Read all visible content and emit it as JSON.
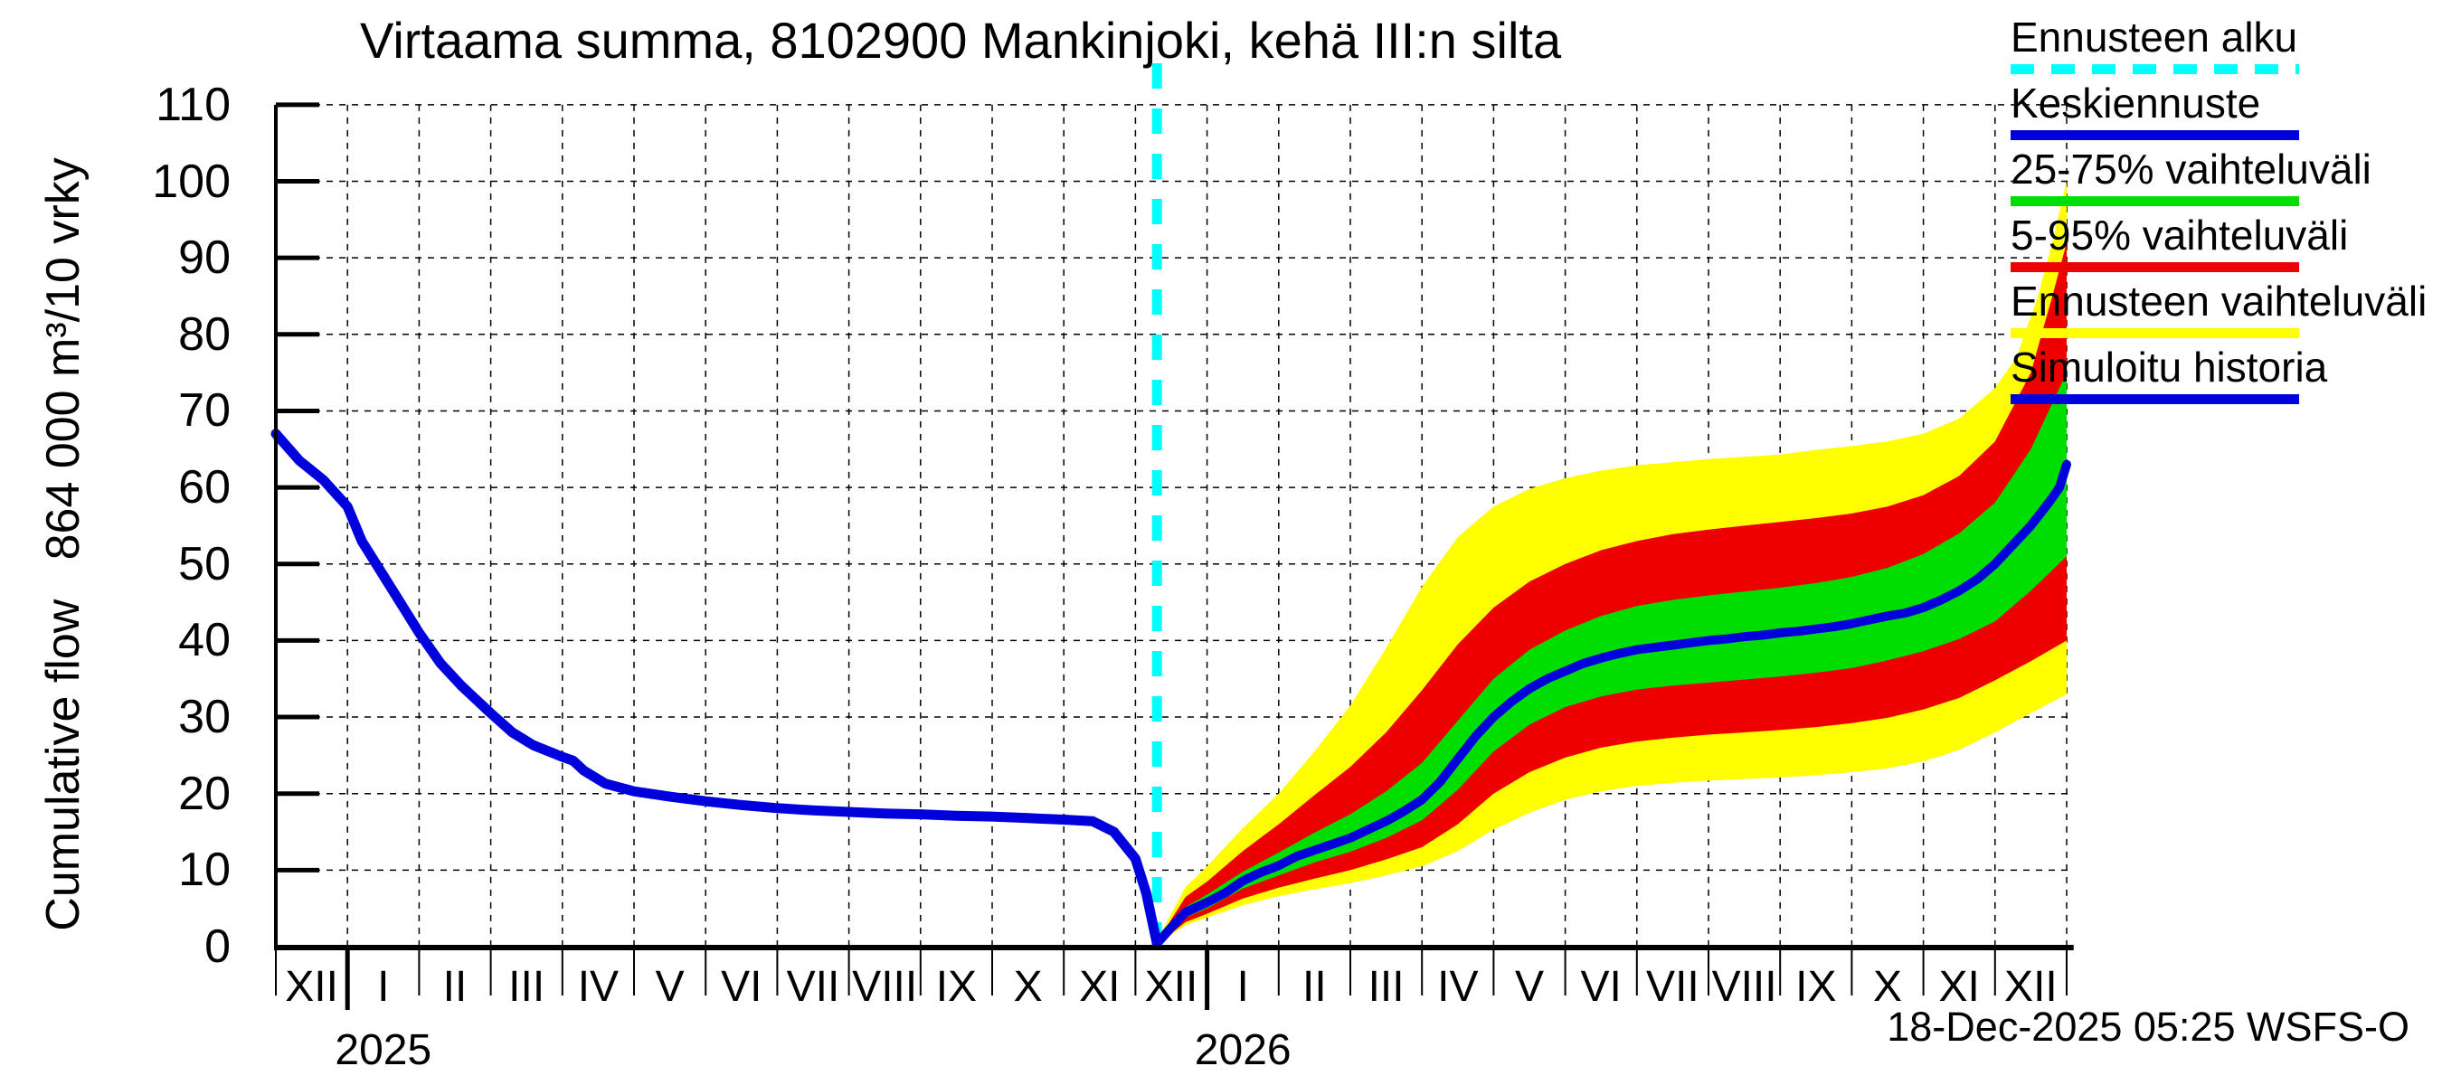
{
  "title": "Virtaama summa, 8102900 Mankinjoki, kehä III:n silta",
  "y_axis": {
    "label": "Cumulative flow   864 000 m³/10 vrky",
    "ticks": [
      0,
      10,
      20,
      30,
      40,
      50,
      60,
      70,
      80,
      90,
      100,
      110
    ],
    "lim": [
      0,
      110
    ]
  },
  "x_axis": {
    "month_labels": [
      "XII",
      "I",
      "II",
      "III",
      "IV",
      "V",
      "VI",
      "VII",
      "VIII",
      "IX",
      "X",
      "XI",
      "XII",
      "I",
      "II",
      "III",
      "IV",
      "V",
      "VI",
      "VII",
      "VIII",
      "IX",
      "X",
      "XI",
      "XII"
    ],
    "year_labels": [
      {
        "text": "2025",
        "month_index": 1
      },
      {
        "text": "2026",
        "month_index": 13
      }
    ]
  },
  "legend": {
    "items": [
      {
        "label": "Ennusteen alku",
        "color": "#00ffff",
        "style": "dashed"
      },
      {
        "label": "Keskiennuste",
        "color": "#0000dd",
        "style": "solid"
      },
      {
        "label": "25-75% vaihteluväli",
        "color": "#00dd00",
        "style": "solid"
      },
      {
        "label": "5-95% vaihteluväli",
        "color": "#ee0000",
        "style": "solid"
      },
      {
        "label": "Ennusteen vaihteluväli",
        "color": "#ffff00",
        "style": "solid"
      },
      {
        "label": "Simuloitu historia",
        "color": "#0000dd",
        "style": "solid"
      }
    ]
  },
  "footer": {
    "timestamp": "18-Dec-2025 05:25 WSFS-O"
  },
  "colors": {
    "history": "#0000dd",
    "median": "#0000dd",
    "band_25_75": "#00dd00",
    "band_5_95": "#ee0000",
    "band_minmax": "#ffff00",
    "forecast_start": "#00ffff",
    "grid": "#000000",
    "axis": "#000000"
  },
  "chart_data": {
    "type": "line",
    "subtype": "forecast-fan",
    "title": "Virtaama summa, 8102900 Mankinjoki, kehä III:n silta",
    "ylabel": "Cumulative flow 864 000 m³/10 vrky",
    "ylim": [
      0,
      110
    ],
    "grid": "dashed-both-axes",
    "legend_position": "outside-top-right",
    "x_unit": "months from 1 Dec 2024 (ticks at month starts, labels XII..XII, years 2025/2026)",
    "forecast_start_month": 12.3,
    "series": [
      {
        "name": "Simuloitu historia",
        "kind": "line",
        "points": [
          [
            0,
            67
          ],
          [
            0.33,
            63.5
          ],
          [
            0.66,
            61
          ],
          [
            1,
            57.5
          ],
          [
            1.2,
            53
          ],
          [
            1.5,
            48.5
          ],
          [
            1.8,
            44
          ],
          [
            2,
            41
          ],
          [
            2.3,
            37
          ],
          [
            2.6,
            34
          ],
          [
            3,
            30.5
          ],
          [
            3.3,
            28
          ],
          [
            3.6,
            26.3
          ],
          [
            4,
            24.8
          ],
          [
            4.15,
            24.3
          ],
          [
            4.3,
            23
          ],
          [
            4.6,
            21.3
          ],
          [
            5,
            20.3
          ],
          [
            5.5,
            19.6
          ],
          [
            6,
            19
          ],
          [
            6.5,
            18.5
          ],
          [
            7,
            18.1
          ],
          [
            7.5,
            17.8
          ],
          [
            8,
            17.6
          ],
          [
            8.5,
            17.4
          ],
          [
            9,
            17.3
          ],
          [
            9.5,
            17.1
          ],
          [
            10,
            17
          ],
          [
            10.5,
            16.8
          ],
          [
            11,
            16.6
          ],
          [
            11.4,
            16.4
          ],
          [
            11.7,
            15
          ],
          [
            12,
            11.5
          ],
          [
            12.15,
            7
          ],
          [
            12.3,
            0.4
          ]
        ]
      },
      {
        "name": "Keskiennuste",
        "kind": "line",
        "points": [
          [
            12.3,
            0.4
          ],
          [
            12.5,
            2.5
          ],
          [
            12.7,
            4.5
          ],
          [
            13,
            5.8
          ],
          [
            13.25,
            7
          ],
          [
            13.5,
            8.6
          ],
          [
            13.75,
            9.7
          ],
          [
            14,
            10.6
          ],
          [
            14.25,
            11.8
          ],
          [
            14.5,
            12.6
          ],
          [
            14.75,
            13.4
          ],
          [
            15,
            14.2
          ],
          [
            15.25,
            15.3
          ],
          [
            15.5,
            16.4
          ],
          [
            15.75,
            17.7
          ],
          [
            16,
            19.2
          ],
          [
            16.25,
            21.5
          ],
          [
            16.5,
            24.5
          ],
          [
            16.75,
            27.5
          ],
          [
            17,
            30
          ],
          [
            17.25,
            32
          ],
          [
            17.5,
            33.7
          ],
          [
            17.75,
            35
          ],
          [
            18,
            36
          ],
          [
            18.25,
            37
          ],
          [
            18.5,
            37.7
          ],
          [
            18.75,
            38.3
          ],
          [
            19,
            38.8
          ],
          [
            19.25,
            39.1
          ],
          [
            19.5,
            39.4
          ],
          [
            19.75,
            39.7
          ],
          [
            20,
            40
          ],
          [
            20.25,
            40.2
          ],
          [
            20.5,
            40.5
          ],
          [
            20.75,
            40.7
          ],
          [
            21,
            41
          ],
          [
            21.25,
            41.2
          ],
          [
            21.5,
            41.5
          ],
          [
            21.75,
            41.8
          ],
          [
            22,
            42.2
          ],
          [
            22.25,
            42.7
          ],
          [
            22.5,
            43.2
          ],
          [
            22.75,
            43.6
          ],
          [
            23,
            44.3
          ],
          [
            23.25,
            45.3
          ],
          [
            23.5,
            46.5
          ],
          [
            23.75,
            48
          ],
          [
            24,
            50
          ],
          [
            24.25,
            52.5
          ],
          [
            24.5,
            55
          ],
          [
            24.75,
            58
          ],
          [
            24.9,
            60
          ],
          [
            25,
            63
          ]
        ]
      },
      {
        "name": "25-75% vaihteluväli",
        "kind": "band",
        "low": [
          [
            12.3,
            0.3
          ],
          [
            12.7,
            3.8
          ],
          [
            13,
            5
          ],
          [
            13.5,
            7.6
          ],
          [
            14,
            9.3
          ],
          [
            14.5,
            11
          ],
          [
            15,
            12.4
          ],
          [
            15.5,
            14.2
          ],
          [
            16,
            16.5
          ],
          [
            16.5,
            20.5
          ],
          [
            17,
            25.5
          ],
          [
            17.5,
            29
          ],
          [
            18,
            31.3
          ],
          [
            18.5,
            32.7
          ],
          [
            19,
            33.6
          ],
          [
            19.5,
            34.1
          ],
          [
            20,
            34.5
          ],
          [
            20.5,
            34.9
          ],
          [
            21,
            35.3
          ],
          [
            21.5,
            35.8
          ],
          [
            22,
            36.4
          ],
          [
            22.5,
            37.4
          ],
          [
            23,
            38.6
          ],
          [
            23.5,
            40.2
          ],
          [
            24,
            42.5
          ],
          [
            24.5,
            46.5
          ],
          [
            25,
            51
          ]
        ],
        "high": [
          [
            12.3,
            0.5
          ],
          [
            12.7,
            5.2
          ],
          [
            13,
            6.8
          ],
          [
            13.5,
            9.8
          ],
          [
            14,
            12.3
          ],
          [
            14.5,
            14.9
          ],
          [
            15,
            17.3
          ],
          [
            15.5,
            20.3
          ],
          [
            16,
            24
          ],
          [
            16.5,
            29.5
          ],
          [
            17,
            35
          ],
          [
            17.5,
            38.8
          ],
          [
            18,
            41.3
          ],
          [
            18.5,
            43.2
          ],
          [
            19,
            44.5
          ],
          [
            19.5,
            45.3
          ],
          [
            20,
            45.9
          ],
          [
            20.5,
            46.4
          ],
          [
            21,
            46.9
          ],
          [
            21.5,
            47.5
          ],
          [
            22,
            48.3
          ],
          [
            22.5,
            49.5
          ],
          [
            23,
            51.3
          ],
          [
            23.5,
            54
          ],
          [
            24,
            58
          ],
          [
            24.5,
            65
          ],
          [
            25,
            75
          ]
        ]
      },
      {
        "name": "5-95% vaihteluväli",
        "kind": "band",
        "low": [
          [
            12.3,
            0.25
          ],
          [
            12.7,
            3.2
          ],
          [
            13,
            4.3
          ],
          [
            13.5,
            6.3
          ],
          [
            14,
            7.7
          ],
          [
            14.5,
            8.9
          ],
          [
            15,
            10
          ],
          [
            15.5,
            11.4
          ],
          [
            16,
            13
          ],
          [
            16.5,
            16
          ],
          [
            17,
            20
          ],
          [
            17.5,
            22.8
          ],
          [
            18,
            24.7
          ],
          [
            18.5,
            26
          ],
          [
            19,
            26.8
          ],
          [
            19.5,
            27.3
          ],
          [
            20,
            27.7
          ],
          [
            20.5,
            28
          ],
          [
            21,
            28.3
          ],
          [
            21.5,
            28.7
          ],
          [
            22,
            29.2
          ],
          [
            22.5,
            29.9
          ],
          [
            23,
            31
          ],
          [
            23.5,
            32.5
          ],
          [
            24,
            34.8
          ],
          [
            24.5,
            37.3
          ],
          [
            25,
            40
          ]
        ],
        "high": [
          [
            12.3,
            0.6
          ],
          [
            12.7,
            6.5
          ],
          [
            13,
            8.5
          ],
          [
            13.5,
            12.5
          ],
          [
            14,
            16
          ],
          [
            14.5,
            19.8
          ],
          [
            15,
            23.5
          ],
          [
            15.5,
            28
          ],
          [
            16,
            33.5
          ],
          [
            16.5,
            39.5
          ],
          [
            17,
            44.3
          ],
          [
            17.5,
            47.7
          ],
          [
            18,
            50
          ],
          [
            18.5,
            51.8
          ],
          [
            19,
            53
          ],
          [
            19.5,
            53.9
          ],
          [
            20,
            54.5
          ],
          [
            20.5,
            55
          ],
          [
            21,
            55.5
          ],
          [
            21.5,
            56
          ],
          [
            22,
            56.6
          ],
          [
            22.5,
            57.5
          ],
          [
            23,
            59
          ],
          [
            23.5,
            61.5
          ],
          [
            24,
            66
          ],
          [
            24.5,
            75
          ],
          [
            24.8,
            85
          ],
          [
            25,
            92
          ]
        ]
      },
      {
        "name": "Ennusteen vaihteluväli",
        "kind": "band",
        "low": [
          [
            12.3,
            0.2
          ],
          [
            12.7,
            2.8
          ],
          [
            13,
            3.8
          ],
          [
            13.5,
            5.4
          ],
          [
            14,
            6.6
          ],
          [
            14.5,
            7.5
          ],
          [
            15,
            8.3
          ],
          [
            15.5,
            9.3
          ],
          [
            16,
            10.5
          ],
          [
            16.5,
            12.5
          ],
          [
            17,
            15.3
          ],
          [
            17.5,
            17.5
          ],
          [
            18,
            19.2
          ],
          [
            18.5,
            20.3
          ],
          [
            19,
            21
          ],
          [
            19.5,
            21.4
          ],
          [
            20,
            21.7
          ],
          [
            20.5,
            21.9
          ],
          [
            21,
            22.1
          ],
          [
            21.5,
            22.4
          ],
          [
            22,
            22.8
          ],
          [
            22.5,
            23.3
          ],
          [
            23,
            24.2
          ],
          [
            23.5,
            25.7
          ],
          [
            24,
            28
          ],
          [
            24.5,
            30.5
          ],
          [
            25,
            33
          ]
        ],
        "high": [
          [
            12.3,
            0.8
          ],
          [
            12.7,
            7.8
          ],
          [
            13,
            10.5
          ],
          [
            13.5,
            15.5
          ],
          [
            14,
            20
          ],
          [
            14.5,
            25.5
          ],
          [
            15,
            31.5
          ],
          [
            15.5,
            39
          ],
          [
            16,
            47
          ],
          [
            16.5,
            53.5
          ],
          [
            17,
            57.5
          ],
          [
            17.5,
            59.8
          ],
          [
            18,
            61.2
          ],
          [
            18.5,
            62.2
          ],
          [
            19,
            62.9
          ],
          [
            19.5,
            63.3
          ],
          [
            20,
            63.7
          ],
          [
            20.5,
            64
          ],
          [
            21,
            64.3
          ],
          [
            21.5,
            64.9
          ],
          [
            22,
            65.4
          ],
          [
            22.5,
            66
          ],
          [
            23,
            67
          ],
          [
            23.5,
            69
          ],
          [
            24,
            73
          ],
          [
            24.3,
            77
          ],
          [
            24.6,
            85
          ],
          [
            24.8,
            92
          ],
          [
            25,
            100
          ]
        ]
      }
    ]
  }
}
